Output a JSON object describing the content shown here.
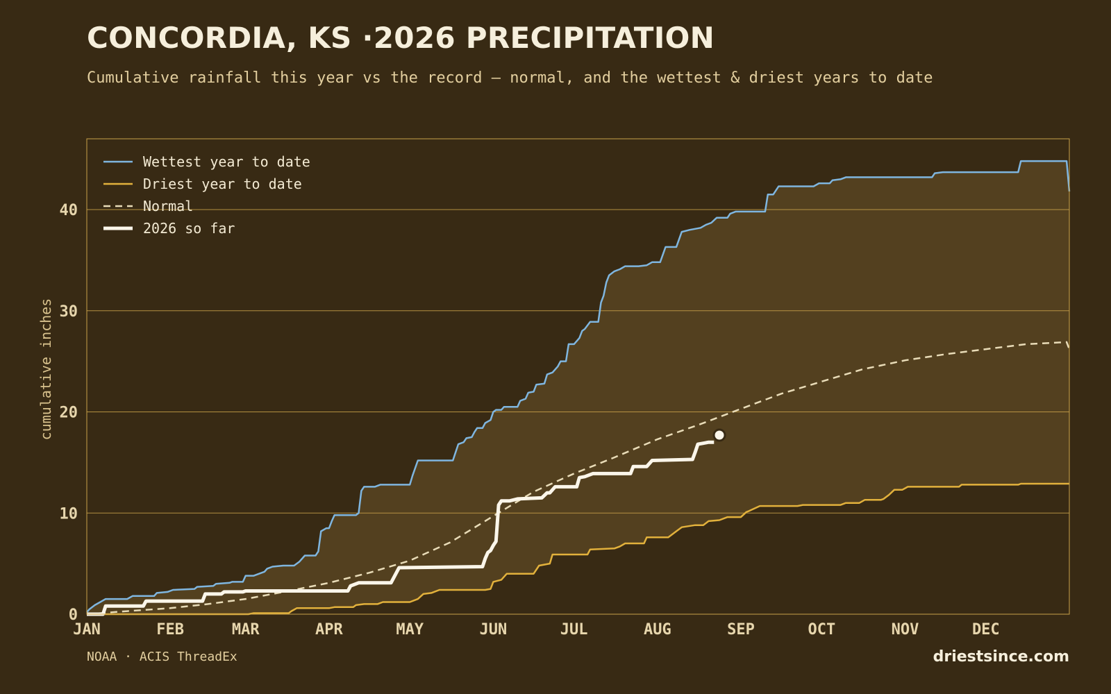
{
  "header": {
    "title": "CONCORDIA, KS ·2026 PRECIPITATION",
    "subtitle": "Cumulative rainfall this year vs the record — normal, and the wettest & driest years to date"
  },
  "footer": {
    "source": "NOAA · ACIS ThreadEx",
    "brand": "driestsince.com"
  },
  "colors": {
    "background": "#382a14",
    "band_fill": "#53401f",
    "grid": "#c9a24a",
    "wettest": "#7fb6e0",
    "driest": "#e2b13c",
    "normal": "#e9dcb8",
    "current": "#fbf6ea"
  },
  "chart_data": {
    "type": "line",
    "ylabel": "cumulative inches",
    "ylim": [
      0,
      47
    ],
    "xlim": [
      0,
      365
    ],
    "yticks": [
      0,
      10,
      20,
      30,
      40
    ],
    "month_ticks": [
      {
        "label": "JAN",
        "day": 0
      },
      {
        "label": "FEB",
        "day": 31
      },
      {
        "label": "MAR",
        "day": 59
      },
      {
        "label": "APR",
        "day": 90
      },
      {
        "label": "MAY",
        "day": 120
      },
      {
        "label": "JUN",
        "day": 151
      },
      {
        "label": "JUL",
        "day": 181
      },
      {
        "label": "AUG",
        "day": 212
      },
      {
        "label": "SEP",
        "day": 243
      },
      {
        "label": "OCT",
        "day": 273
      },
      {
        "label": "NOV",
        "day": 304
      },
      {
        "label": "DEC",
        "day": 334
      }
    ],
    "grid": true,
    "legend_position": "top-left",
    "shaded_band": "between driest and wettest year to date",
    "series": [
      {
        "name": "Wettest year to date",
        "style": "solid",
        "points": [
          [
            0,
            0.2
          ],
          [
            1,
            0.5
          ],
          [
            3,
            0.9
          ],
          [
            5,
            1.2
          ],
          [
            7,
            1.5
          ],
          [
            15,
            1.5
          ],
          [
            17,
            1.8
          ],
          [
            25,
            1.8
          ],
          [
            26,
            2.1
          ],
          [
            30,
            2.2
          ],
          [
            32,
            2.4
          ],
          [
            40,
            2.5
          ],
          [
            41,
            2.7
          ],
          [
            47,
            2.8
          ],
          [
            48,
            3.0
          ],
          [
            53,
            3.1
          ],
          [
            54,
            3.2
          ],
          [
            58,
            3.2
          ],
          [
            59,
            3.8
          ],
          [
            62,
            3.8
          ],
          [
            64,
            4.0
          ],
          [
            66,
            4.2
          ],
          [
            67,
            4.5
          ],
          [
            69,
            4.7
          ],
          [
            73,
            4.8
          ],
          [
            77,
            4.8
          ],
          [
            79,
            5.2
          ],
          [
            81,
            5.8
          ],
          [
            85,
            5.8
          ],
          [
            86,
            6.2
          ],
          [
            87,
            8.2
          ],
          [
            89,
            8.5
          ],
          [
            90,
            8.5
          ],
          [
            91,
            9.2
          ],
          [
            92,
            9.8
          ],
          [
            100,
            9.8
          ],
          [
            101,
            10.0
          ],
          [
            102,
            12.2
          ],
          [
            103,
            12.6
          ],
          [
            107,
            12.6
          ],
          [
            109,
            12.8
          ],
          [
            120,
            12.8
          ],
          [
            121,
            13.7
          ],
          [
            123,
            15.2
          ],
          [
            136,
            15.2
          ],
          [
            137,
            16.0
          ],
          [
            138,
            16.8
          ],
          [
            140,
            17.0
          ],
          [
            141,
            17.4
          ],
          [
            143,
            17.5
          ],
          [
            144,
            18.0
          ],
          [
            145,
            18.4
          ],
          [
            147,
            18.4
          ],
          [
            148,
            18.9
          ],
          [
            150,
            19.2
          ],
          [
            151,
            20.0
          ],
          [
            152,
            20.2
          ],
          [
            154,
            20.2
          ],
          [
            155,
            20.5
          ],
          [
            160,
            20.5
          ],
          [
            161,
            21.1
          ],
          [
            163,
            21.3
          ],
          [
            164,
            21.9
          ],
          [
            166,
            22.0
          ],
          [
            167,
            22.7
          ],
          [
            170,
            22.8
          ],
          [
            171,
            23.7
          ],
          [
            173,
            23.9
          ],
          [
            175,
            24.5
          ],
          [
            176,
            25.0
          ],
          [
            178,
            25.0
          ],
          [
            179,
            26.7
          ],
          [
            181,
            26.7
          ],
          [
            183,
            27.3
          ],
          [
            184,
            28.0
          ],
          [
            185,
            28.2
          ],
          [
            187,
            28.9
          ],
          [
            190,
            28.9
          ],
          [
            191,
            30.8
          ],
          [
            192,
            31.5
          ],
          [
            193,
            32.8
          ],
          [
            194,
            33.5
          ],
          [
            196,
            33.9
          ],
          [
            198,
            34.1
          ],
          [
            200,
            34.4
          ],
          [
            205,
            34.4
          ],
          [
            208,
            34.5
          ],
          [
            210,
            34.8
          ],
          [
            213,
            34.8
          ],
          [
            215,
            36.3
          ],
          [
            219,
            36.3
          ],
          [
            221,
            37.8
          ],
          [
            224,
            38.0
          ],
          [
            228,
            38.2
          ],
          [
            230,
            38.5
          ],
          [
            232,
            38.7
          ],
          [
            234,
            39.2
          ],
          [
            238,
            39.2
          ],
          [
            239,
            39.6
          ],
          [
            241,
            39.8
          ],
          [
            252,
            39.8
          ],
          [
            253,
            41.5
          ],
          [
            255,
            41.5
          ],
          [
            257,
            42.3
          ],
          [
            270,
            42.3
          ],
          [
            272,
            42.6
          ],
          [
            276,
            42.6
          ],
          [
            277,
            42.9
          ],
          [
            280,
            43.0
          ],
          [
            282,
            43.2
          ],
          [
            314,
            43.2
          ],
          [
            315,
            43.6
          ],
          [
            318,
            43.7
          ],
          [
            346,
            43.7
          ],
          [
            347,
            44.8
          ],
          [
            364,
            44.8
          ],
          [
            365,
            41.8
          ]
        ]
      },
      {
        "name": "Driest year to date",
        "style": "solid",
        "points": [
          [
            0,
            0.0
          ],
          [
            60,
            0.0
          ],
          [
            62,
            0.1
          ],
          [
            75,
            0.1
          ],
          [
            76,
            0.3
          ],
          [
            78,
            0.6
          ],
          [
            90,
            0.6
          ],
          [
            92,
            0.7
          ],
          [
            99,
            0.7
          ],
          [
            100,
            0.9
          ],
          [
            103,
            1.0
          ],
          [
            108,
            1.0
          ],
          [
            110,
            1.2
          ],
          [
            120,
            1.2
          ],
          [
            123,
            1.5
          ],
          [
            125,
            2.0
          ],
          [
            128,
            2.1
          ],
          [
            131,
            2.4
          ],
          [
            148,
            2.4
          ],
          [
            150,
            2.5
          ],
          [
            151,
            3.2
          ],
          [
            154,
            3.4
          ],
          [
            156,
            4.0
          ],
          [
            166,
            4.0
          ],
          [
            168,
            4.8
          ],
          [
            172,
            5.0
          ],
          [
            173,
            5.9
          ],
          [
            186,
            5.9
          ],
          [
            187,
            6.4
          ],
          [
            196,
            6.5
          ],
          [
            198,
            6.7
          ],
          [
            200,
            7.0
          ],
          [
            207,
            7.0
          ],
          [
            208,
            7.6
          ],
          [
            216,
            7.6
          ],
          [
            219,
            8.2
          ],
          [
            221,
            8.6
          ],
          [
            226,
            8.8
          ],
          [
            229,
            8.8
          ],
          [
            231,
            9.2
          ],
          [
            235,
            9.3
          ],
          [
            238,
            9.6
          ],
          [
            243,
            9.6
          ],
          [
            245,
            10.1
          ],
          [
            246,
            10.2
          ],
          [
            250,
            10.7
          ],
          [
            264,
            10.7
          ],
          [
            266,
            10.8
          ],
          [
            280,
            10.8
          ],
          [
            282,
            11.0
          ],
          [
            287,
            11.0
          ],
          [
            289,
            11.3
          ],
          [
            295,
            11.3
          ],
          [
            296,
            11.4
          ],
          [
            298,
            11.8
          ],
          [
            300,
            12.3
          ],
          [
            303,
            12.3
          ],
          [
            305,
            12.6
          ],
          [
            324,
            12.6
          ],
          [
            325,
            12.8
          ],
          [
            346,
            12.8
          ],
          [
            347,
            12.9
          ],
          [
            365,
            12.9
          ]
        ]
      },
      {
        "name": "Normal",
        "style": "dashed",
        "points": [
          [
            0,
            0.0
          ],
          [
            15,
            0.3
          ],
          [
            31,
            0.6
          ],
          [
            45,
            1.0
          ],
          [
            59,
            1.5
          ],
          [
            75,
            2.3
          ],
          [
            90,
            3.1
          ],
          [
            105,
            4.1
          ],
          [
            120,
            5.3
          ],
          [
            135,
            7.1
          ],
          [
            151,
            9.7
          ],
          [
            166,
            12.1
          ],
          [
            181,
            13.9
          ],
          [
            196,
            15.5
          ],
          [
            212,
            17.3
          ],
          [
            227,
            18.7
          ],
          [
            243,
            20.3
          ],
          [
            258,
            21.8
          ],
          [
            273,
            23.0
          ],
          [
            288,
            24.2
          ],
          [
            304,
            25.1
          ],
          [
            319,
            25.7
          ],
          [
            334,
            26.2
          ],
          [
            349,
            26.7
          ],
          [
            364,
            26.9
          ],
          [
            365,
            26.2
          ]
        ]
      },
      {
        "name": "2026 so far",
        "style": "solid-thick",
        "points": [
          [
            0,
            0.0
          ],
          [
            6,
            0.0
          ],
          [
            7,
            0.8
          ],
          [
            21,
            0.8
          ],
          [
            22,
            1.3
          ],
          [
            43,
            1.3
          ],
          [
            44,
            2.0
          ],
          [
            50,
            2.0
          ],
          [
            51,
            2.2
          ],
          [
            58,
            2.2
          ],
          [
            59,
            2.3
          ],
          [
            97,
            2.3
          ],
          [
            98,
            2.8
          ],
          [
            101,
            3.1
          ],
          [
            113,
            3.1
          ],
          [
            116,
            4.6
          ],
          [
            147,
            4.7
          ],
          [
            148,
            5.5
          ],
          [
            149,
            6.1
          ],
          [
            150,
            6.3
          ],
          [
            151,
            6.8
          ],
          [
            152,
            7.2
          ],
          [
            153,
            10.8
          ],
          [
            154,
            11.2
          ],
          [
            157,
            11.2
          ],
          [
            160,
            11.4
          ],
          [
            169,
            11.5
          ],
          [
            171,
            12.0
          ],
          [
            172,
            12.0
          ],
          [
            174,
            12.6
          ],
          [
            182,
            12.6
          ],
          [
            183,
            13.5
          ],
          [
            185,
            13.6
          ],
          [
            188,
            13.9
          ],
          [
            202,
            13.9
          ],
          [
            203,
            14.6
          ],
          [
            208,
            14.6
          ],
          [
            210,
            15.2
          ],
          [
            225,
            15.3
          ],
          [
            226,
            16.0
          ],
          [
            227,
            16.8
          ],
          [
            229,
            16.9
          ],
          [
            231,
            17.0
          ],
          [
            233,
            17.0
          ]
        ],
        "latest_point": [
          235,
          17.7
        ]
      }
    ]
  }
}
